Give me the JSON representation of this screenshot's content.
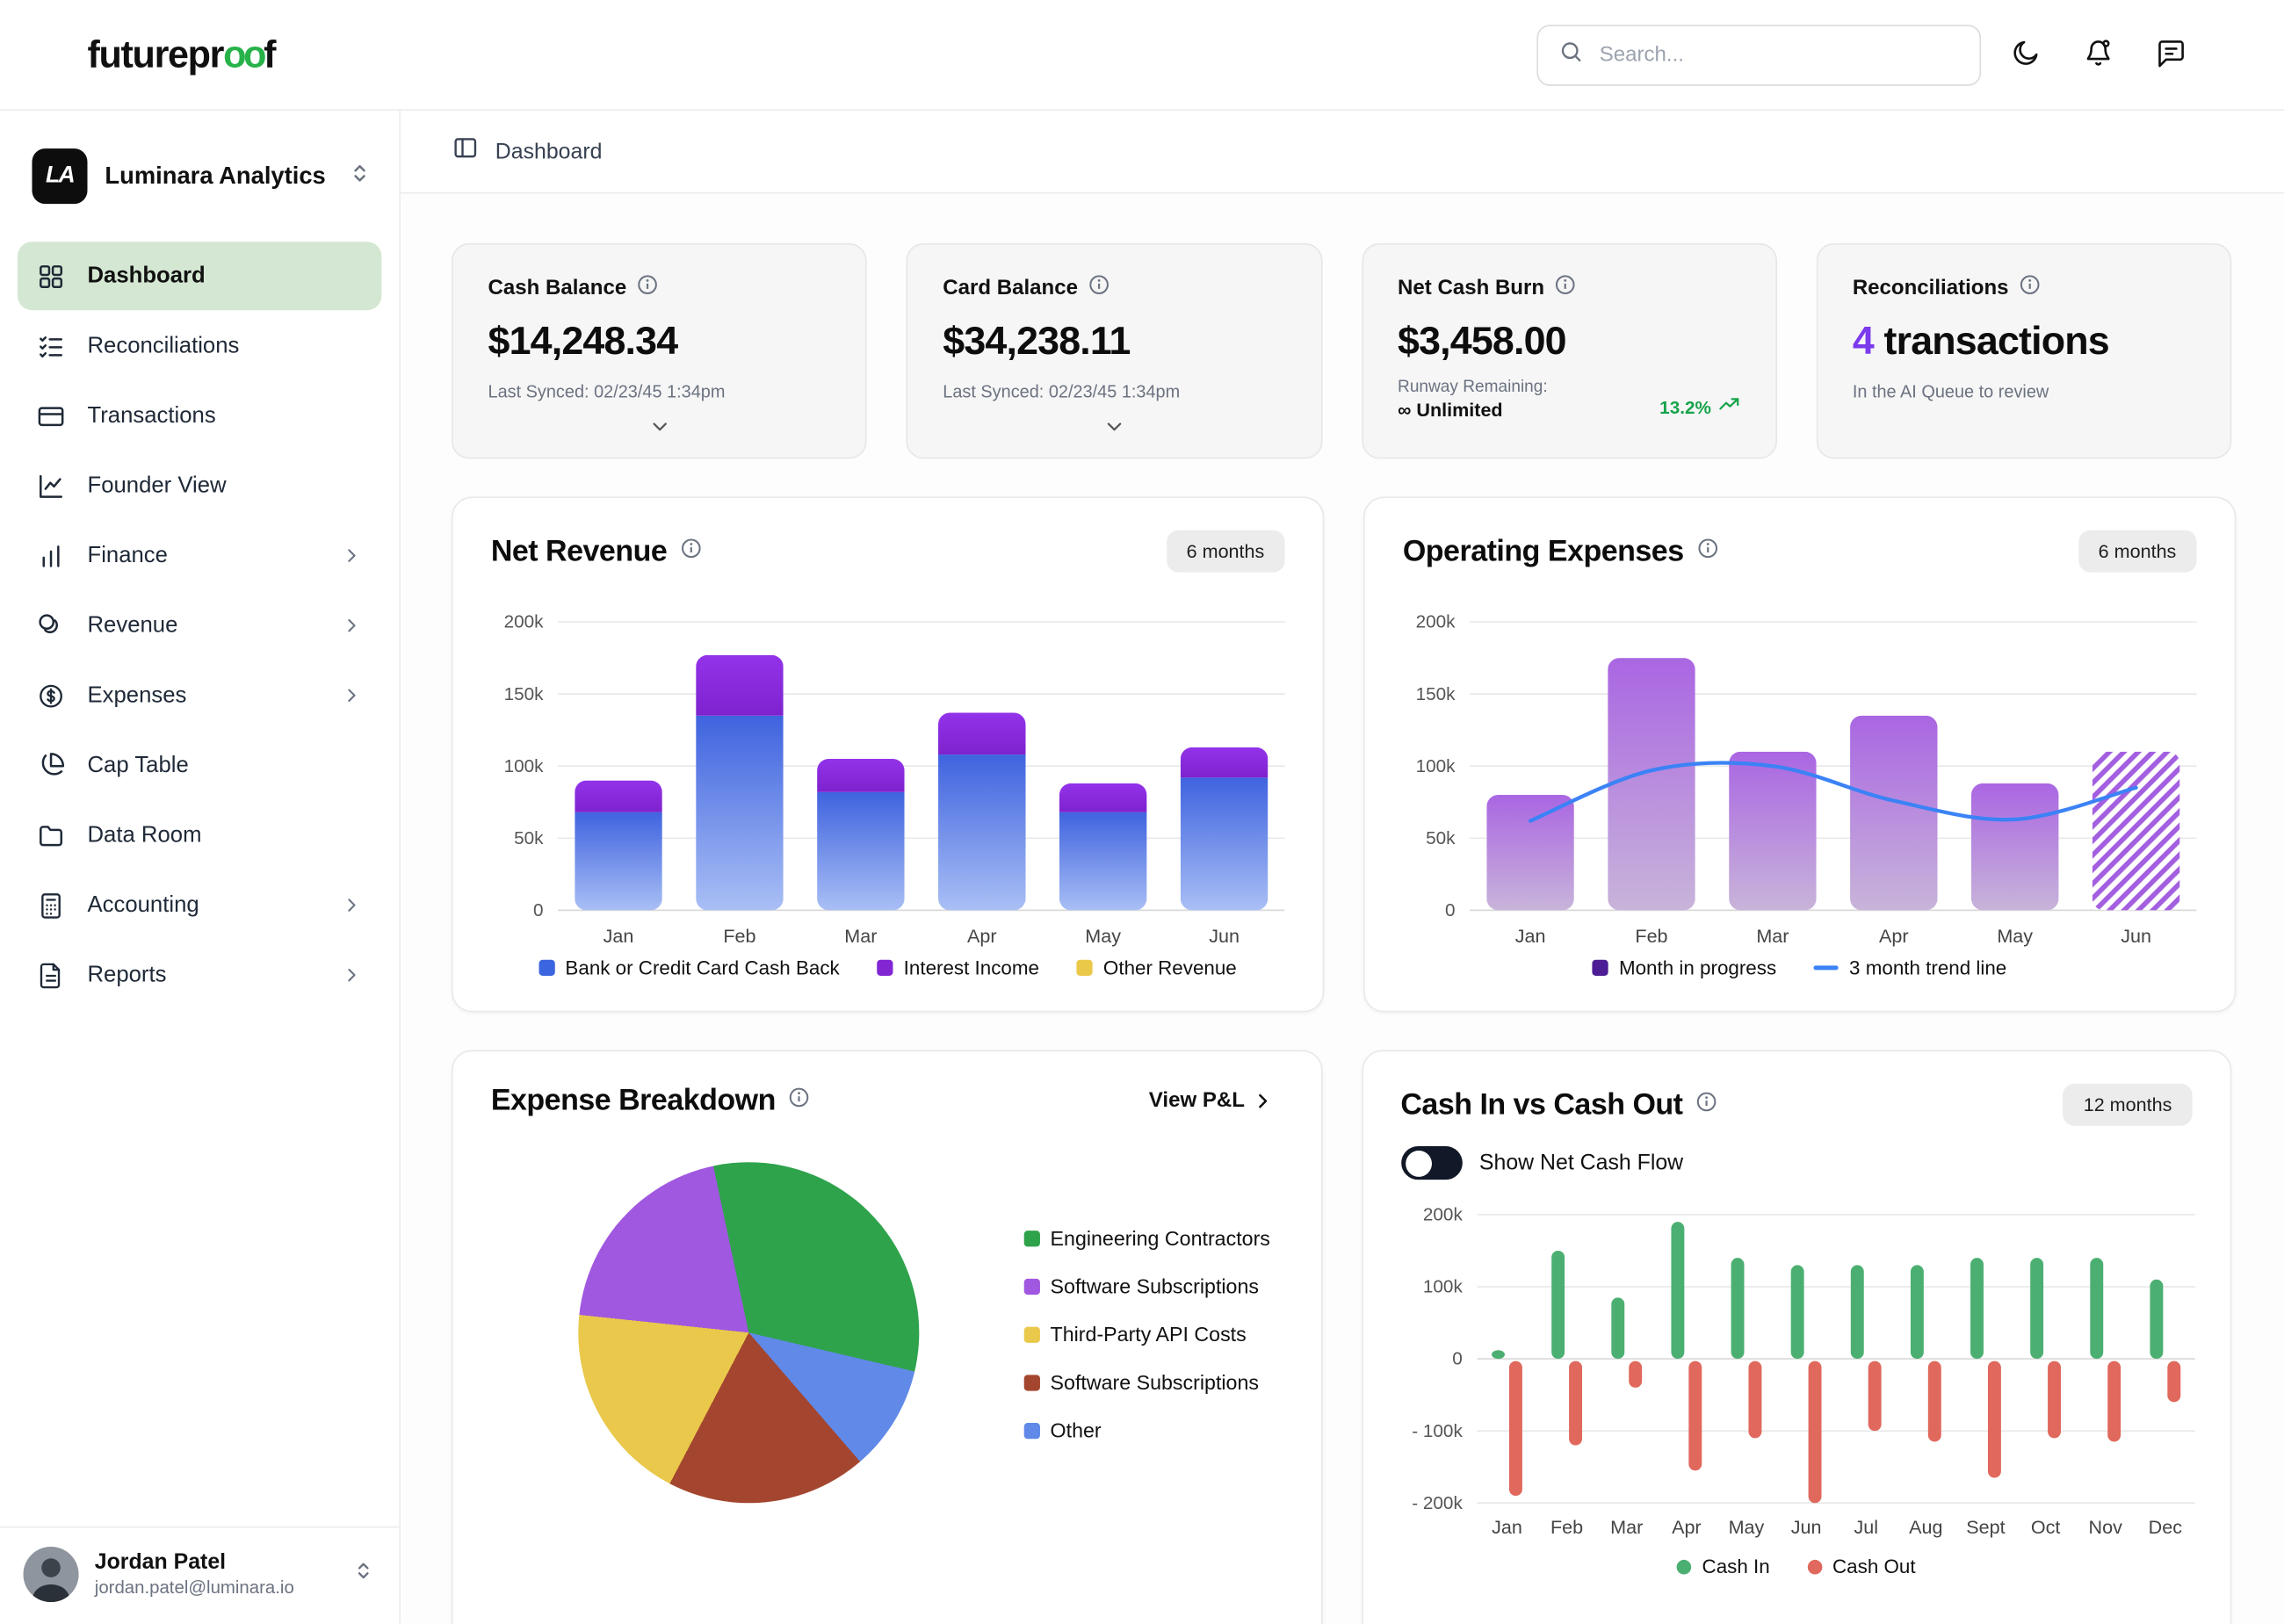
{
  "header": {
    "logo_prefix": "futurepr",
    "logo_oo": "oo",
    "logo_suffix": "f",
    "search_placeholder": "Search..."
  },
  "sidebar": {
    "workspace_initials": "LA",
    "workspace_name": "Luminara Analytics",
    "items": [
      {
        "label": "Dashboard"
      },
      {
        "label": "Reconciliations"
      },
      {
        "label": "Transactions"
      },
      {
        "label": "Founder View"
      },
      {
        "label": "Finance"
      },
      {
        "label": "Revenue"
      },
      {
        "label": "Expenses"
      },
      {
        "label": "Cap Table"
      },
      {
        "label": "Data Room"
      },
      {
        "label": "Accounting"
      },
      {
        "label": "Reports"
      }
    ],
    "user_name": "Jordan Patel",
    "user_email": "jordan.patel@luminara.io"
  },
  "breadcrumb": {
    "label": "Dashboard"
  },
  "stat_cards": [
    {
      "title": "Cash Balance",
      "value": "$14,248.34",
      "subtitle": "Last Synced: 02/23/45 1:34pm"
    },
    {
      "title": "Card Balance",
      "value": "$34,238.11",
      "subtitle": "Last Synced: 02/23/45 1:34pm"
    },
    {
      "title": "Net Cash Burn",
      "value": "$3,458.00",
      "runway_label": "Runway Remaining:",
      "runway_value": "∞ Unlimited",
      "trend_value": "13.2%",
      "trend_color": "#16a34a"
    },
    {
      "title": "Reconciliations",
      "value_number": "4",
      "value_unit": "transactions",
      "subtitle": "In the AI Queue to review",
      "number_color": "#7c3aed"
    }
  ],
  "chart_data": [
    {
      "type": "bar",
      "stacked": true,
      "title": "Net Revenue",
      "period_badge": "6 months",
      "categories": [
        "Jan",
        "Feb",
        "Mar",
        "Apr",
        "May",
        "Jun"
      ],
      "series": [
        {
          "name": "Bank or Credit Card Cash Back",
          "legend_color": "#3b66e0",
          "color_top": "#3f63df",
          "color_bottom": "#a9bff5",
          "values": [
            68,
            135,
            82,
            108,
            68,
            92
          ]
        },
        {
          "name": "Interest Income",
          "legend_color": "#8226d3",
          "color_top": "#9333ea",
          "color_bottom": "#7e22ce",
          "values": [
            22,
            42,
            23,
            29,
            20,
            21
          ]
        },
        {
          "name": "Other Revenue",
          "legend_color": "#eac94a",
          "color_top": "#eac94a",
          "color_bottom": "#eac94a",
          "values": [
            0,
            0,
            0,
            0,
            0,
            0
          ]
        }
      ],
      "ylim": [
        0,
        200
      ],
      "ytick_labels": [
        "200k",
        "150k",
        "100k",
        "50k",
        "0"
      ],
      "unit": "k"
    },
    {
      "type": "bar",
      "title": "Operating Expenses",
      "period_badge": "6 months",
      "categories": [
        "Jan",
        "Feb",
        "Mar",
        "Apr",
        "May",
        "Jun"
      ],
      "values": [
        80,
        175,
        110,
        135,
        88,
        110
      ],
      "bar_color_top": "#aa66e2",
      "bar_color_bottom": "#c8b4da",
      "in_progress_index": 5,
      "in_progress_color": "#a35fe0",
      "trend_line": {
        "name": "3 month trend line",
        "color": "#3b82f6",
        "values": [
          62,
          97,
          100,
          76,
          63,
          85
        ]
      },
      "legend": [
        {
          "label": "Month in progress",
          "color": "#4c1d95"
        },
        {
          "label": "3 month trend line",
          "color": "#3b82f6"
        }
      ],
      "ylim": [
        0,
        200
      ],
      "ytick_labels": [
        "200k",
        "150k",
        "100k",
        "50k",
        "0"
      ]
    },
    {
      "type": "pie",
      "title": "Expense Breakdown",
      "link_label": "View P&L",
      "start_angle_deg": -12,
      "slices": [
        {
          "label": "Engineering Contractors",
          "color": "#2fa34c",
          "pct": 32
        },
        {
          "label": "Other",
          "color": "#6089e8",
          "pct": 10
        },
        {
          "label": "Software Subscriptions",
          "color": "#a4462f",
          "pct": 19
        },
        {
          "label": "Third-Party API Costs",
          "color": "#e9c84b",
          "pct": 19
        },
        {
          "label": "Software Subscriptions",
          "color": "#a058e0",
          "pct": 20
        }
      ],
      "legend": [
        {
          "label": "Engineering Contractors",
          "color": "#2fa34c"
        },
        {
          "label": "Software Subscriptions",
          "color": "#a058e0"
        },
        {
          "label": "Third-Party API Costs",
          "color": "#e9c84b"
        },
        {
          "label": "Software Subscriptions",
          "color": "#a4462f"
        },
        {
          "label": "Other",
          "color": "#6089e8"
        }
      ]
    },
    {
      "type": "bar",
      "title": "Cash In vs Cash Out",
      "period_badge": "12 months",
      "toggle_label": "Show Net Cash Flow",
      "toggle_on": false,
      "categories": [
        "Jan",
        "Feb",
        "Mar",
        "Apr",
        "May",
        "Jun",
        "Jul",
        "Aug",
        "Sept",
        "Oct",
        "Nov",
        "Dec"
      ],
      "series": [
        {
          "name": "Cash In",
          "color": "#4caf72",
          "values": [
            12,
            150,
            85,
            190,
            140,
            130,
            130,
            130,
            140,
            140,
            140,
            110
          ]
        },
        {
          "name": "Cash Out",
          "color": "#e0685c",
          "values": [
            -190,
            -120,
            -40,
            -155,
            -110,
            -200,
            -100,
            -115,
            -165,
            -110,
            -115,
            -60
          ]
        }
      ],
      "ylim": [
        -200,
        200
      ],
      "ytick_labels": [
        "200k",
        "100k",
        "0",
        "- 100k",
        "- 200k"
      ],
      "legend": [
        {
          "label": "Cash In",
          "color": "#4caf72"
        },
        {
          "label": "Cash Out",
          "color": "#e0685c"
        }
      ]
    }
  ]
}
